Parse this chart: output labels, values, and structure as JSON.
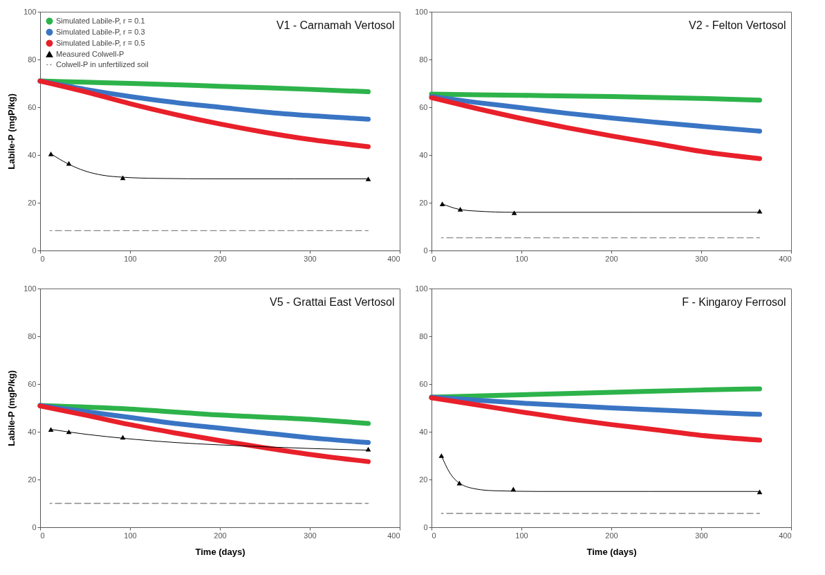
{
  "chart_data": [
    {
      "type": "line",
      "title": "V1 - Carnamah Vertosol",
      "ylabel": "Labile-P (mgP/kg)",
      "xlim": [
        0,
        400
      ],
      "xticks": [
        0,
        100,
        200,
        300,
        400
      ],
      "ylim": [
        0,
        100
      ],
      "yticks": [
        0,
        20,
        40,
        60,
        80,
        100
      ],
      "grid": false,
      "legend": "top left",
      "series": [
        {
          "name": "Simulated Labile-P, r = 0.1",
          "color": "#2db34a",
          "x": [
            0,
            50,
            100,
            150,
            200,
            250,
            300,
            365
          ],
          "values": [
            71,
            70.5,
            70,
            69.4,
            68.8,
            68.2,
            67.5,
            66.5
          ]
        },
        {
          "name": "Simulated Labile-P, r = 0.3",
          "color": "#3a75c4",
          "x": [
            0,
            50,
            100,
            150,
            200,
            250,
            300,
            365
          ],
          "values": [
            71,
            67.5,
            64.5,
            62,
            60,
            58,
            56.5,
            55
          ]
        },
        {
          "name": "Simulated Labile-P, r = 0.5",
          "color": "#e8202a",
          "x": [
            0,
            50,
            100,
            150,
            200,
            250,
            300,
            365
          ],
          "values": [
            71,
            66.5,
            61.5,
            57,
            53,
            49.5,
            46.5,
            43.5
          ]
        },
        {
          "name": "Measured Colwell-P",
          "type": "scatter",
          "marker": "triangle",
          "color": "#000000",
          "x": [
            12,
            32,
            92,
            365
          ],
          "values": [
            40.5,
            36.5,
            30.5,
            30
          ]
        },
        {
          "name": "Colwell-P in unfertilized soil",
          "line_style": "dashed",
          "color": "#888888",
          "x": [
            11,
            365
          ],
          "values": [
            8.3,
            8.3
          ]
        },
        {
          "color": "#000000",
          "x": [
            12,
            30,
            50,
            70,
            92,
            130,
            200,
            365
          ],
          "values": [
            40.5,
            36.5,
            33.3,
            31.5,
            30.7,
            30.2,
            30,
            30
          ]
        }
      ]
    },
    {
      "type": "line",
      "title": "V2 - Felton Vertosol",
      "xlim": [
        0,
        400
      ],
      "xticks": [
        0,
        100,
        200,
        300,
        400
      ],
      "ylim": [
        0,
        100
      ],
      "yticks": [
        0,
        20,
        40,
        60,
        80,
        100
      ],
      "grid": false,
      "series": [
        {
          "color": "#2db34a",
          "x": [
            0,
            100,
            200,
            300,
            365
          ],
          "values": [
            65.5,
            65,
            64.5,
            63.7,
            63
          ]
        },
        {
          "color": "#3a75c4",
          "x": [
            0,
            50,
            100,
            150,
            200,
            250,
            300,
            365
          ],
          "values": [
            64.5,
            62,
            59.8,
            57.5,
            55.5,
            53.7,
            52,
            50
          ]
        },
        {
          "color": "#e8202a",
          "x": [
            0,
            50,
            100,
            150,
            200,
            250,
            300,
            365
          ],
          "values": [
            64,
            59.5,
            55.3,
            51.5,
            48,
            44.8,
            41.5,
            38.5
          ]
        },
        {
          "type": "scatter",
          "marker": "triangle",
          "color": "#000000",
          "x": [
            12,
            32,
            92,
            365
          ],
          "values": [
            19.5,
            17.3,
            15.8,
            16.5
          ]
        },
        {
          "line_style": "dashed",
          "color": "#888888",
          "x": [
            11,
            365
          ],
          "values": [
            5.3,
            5.3
          ]
        },
        {
          "color": "#000000",
          "x": [
            12,
            30,
            50,
            92,
            365
          ],
          "values": [
            19.5,
            17.3,
            16.5,
            16,
            16
          ]
        }
      ]
    },
    {
      "type": "line",
      "title": "V5 - Grattai East Vertosol",
      "xlabel": "Time (days)",
      "ylabel": "Labile-P (mgP/kg)",
      "xlim": [
        0,
        400
      ],
      "xticks": [
        0,
        100,
        200,
        300,
        400
      ],
      "ylim": [
        0,
        100
      ],
      "yticks": [
        0,
        20,
        40,
        60,
        80,
        100
      ],
      "grid": false,
      "series": [
        {
          "color": "#2db34a",
          "x": [
            0,
            100,
            200,
            300,
            365
          ],
          "values": [
            51,
            49.5,
            47,
            45.2,
            43.5
          ]
        },
        {
          "color": "#3a75c4",
          "x": [
            0,
            50,
            100,
            150,
            200,
            250,
            300,
            365
          ],
          "values": [
            51,
            48.5,
            46,
            43.5,
            41.5,
            39.5,
            37.5,
            35.5
          ]
        },
        {
          "color": "#e8202a",
          "x": [
            0,
            50,
            100,
            150,
            200,
            250,
            300,
            365
          ],
          "values": [
            50.8,
            47,
            43,
            39.5,
            36.3,
            33.3,
            30.5,
            27.5
          ]
        },
        {
          "type": "scatter",
          "marker": "triangle",
          "color": "#000000",
          "x": [
            12,
            32,
            92,
            365
          ],
          "values": [
            41,
            40,
            37.7,
            32.7
          ]
        },
        {
          "line_style": "dashed",
          "color": "#888888",
          "x": [
            11,
            365
          ],
          "values": [
            10,
            10
          ]
        },
        {
          "color": "#000000",
          "x": [
            12,
            50,
            100,
            150,
            200,
            250,
            300,
            365
          ],
          "values": [
            41,
            39,
            37,
            35.5,
            34.5,
            33.7,
            33,
            32.3
          ]
        }
      ]
    },
    {
      "type": "line",
      "title": "F - Kingaroy Ferrosol",
      "xlabel": "Time (days)",
      "xlim": [
        0,
        400
      ],
      "xticks": [
        0,
        100,
        200,
        300,
        400
      ],
      "ylim": [
        0,
        100
      ],
      "yticks": [
        0,
        20,
        40,
        60,
        80,
        100
      ],
      "grid": false,
      "series": [
        {
          "color": "#2db34a",
          "x": [
            0,
            100,
            200,
            300,
            365
          ],
          "values": [
            54.5,
            55.5,
            56.5,
            57.5,
            58
          ]
        },
        {
          "color": "#3a75c4",
          "x": [
            0,
            100,
            200,
            300,
            365
          ],
          "values": [
            54.5,
            52,
            50,
            48.3,
            47.3
          ]
        },
        {
          "color": "#e8202a",
          "x": [
            0,
            50,
            100,
            150,
            200,
            250,
            300,
            365
          ],
          "values": [
            54.2,
            51.3,
            48.3,
            45.5,
            43,
            40.8,
            38.5,
            36.5
          ]
        },
        {
          "type": "scatter",
          "marker": "triangle",
          "color": "#000000",
          "x": [
            11,
            31,
            91,
            365
          ],
          "values": [
            30,
            18.5,
            16,
            14.8
          ]
        },
        {
          "line_style": "dashed",
          "color": "#888888",
          "x": [
            11,
            365
          ],
          "values": [
            5.8,
            5.8
          ]
        },
        {
          "color": "#000000",
          "x": [
            11,
            20,
            31,
            50,
            70,
            120,
            365
          ],
          "values": [
            30,
            23,
            18.5,
            16,
            15.3,
            15,
            15
          ]
        }
      ]
    }
  ]
}
